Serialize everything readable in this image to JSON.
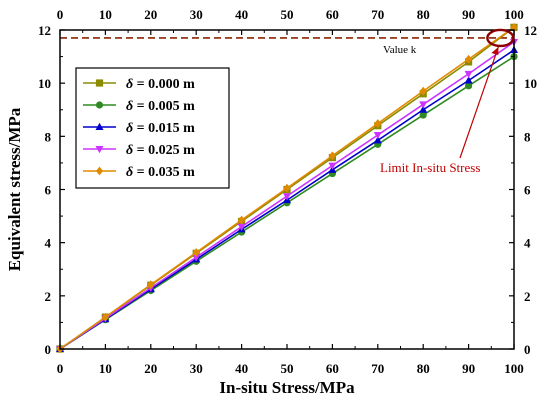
{
  "chart_data": {
    "type": "line",
    "xlabel": "In-situ Stress/MPa",
    "ylabel": "Equivalent stress/MPa",
    "xlim": [
      0,
      100
    ],
    "ylim": [
      0,
      12
    ],
    "x_ticks": [
      "0",
      "10",
      "20",
      "30",
      "40",
      "50",
      "60",
      "70",
      "80",
      "90",
      "100"
    ],
    "y_ticks": [
      "0",
      "2",
      "4",
      "6",
      "8",
      "10",
      "12"
    ],
    "x": [
      0,
      10,
      20,
      30,
      40,
      50,
      60,
      70,
      80,
      90,
      100
    ],
    "series": [
      {
        "name": "= 0.000 m",
        "color": "#8B8B00",
        "marker": "square",
        "values": [
          0,
          1.2,
          2.4,
          3.6,
          4.8,
          6.0,
          7.2,
          8.4,
          9.6,
          10.8,
          12.1
        ]
      },
      {
        "name": "= 0.005 m",
        "color": "#2E8B22",
        "marker": "circle",
        "values": [
          0,
          1.1,
          2.2,
          3.3,
          4.4,
          5.5,
          6.6,
          7.7,
          8.8,
          9.9,
          11.0
        ]
      },
      {
        "name": "= 0.015 m",
        "color": "#0000CC",
        "marker": "triangle-up",
        "values": [
          0,
          1.12,
          2.25,
          3.37,
          4.5,
          5.6,
          6.74,
          7.85,
          9.0,
          10.1,
          11.25
        ]
      },
      {
        "name": "= 0.025 m",
        "color": "#CC33FF",
        "marker": "triangle-down",
        "values": [
          0,
          1.15,
          2.3,
          3.45,
          4.6,
          5.75,
          6.9,
          8.05,
          9.2,
          10.35,
          11.55
        ]
      },
      {
        "name": "= 0.035 m",
        "color": "#E08A00",
        "marker": "diamond",
        "values": [
          0,
          1.2,
          2.42,
          3.63,
          4.85,
          6.05,
          7.27,
          8.48,
          9.7,
          10.9,
          12.1
        ]
      }
    ],
    "legend_symbol": "δ",
    "legend_position": "top-left",
    "reference_line": {
      "y": 11.7,
      "color": "#8B2500",
      "label": "Value k"
    },
    "annotation": {
      "text": "Limit In-situ Stress",
      "color": "#C00000",
      "target_x": 97,
      "target_y": 11.7
    },
    "grid": false
  }
}
